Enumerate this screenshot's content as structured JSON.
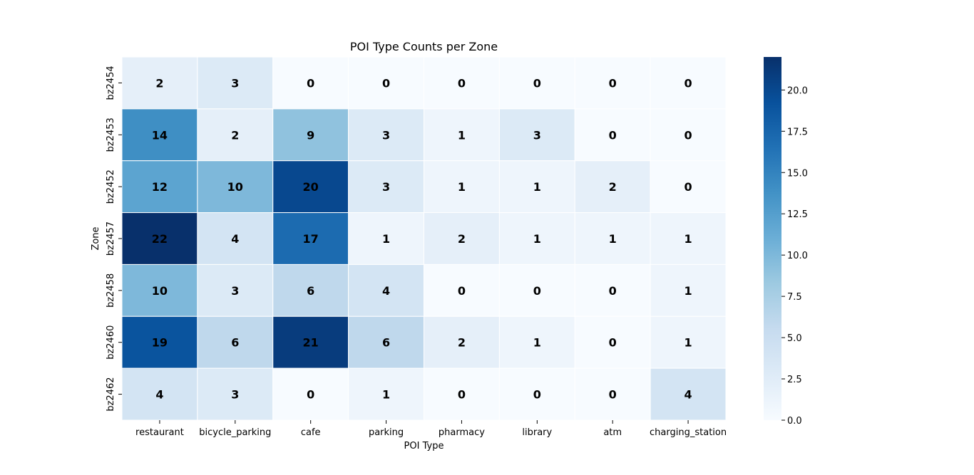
{
  "chart_data": {
    "type": "heatmap",
    "title": "POI Type Counts per Zone",
    "xlabel": "POI Type",
    "ylabel": "Zone",
    "x_categories": [
      "restaurant",
      "bicycle_parking",
      "cafe",
      "parking",
      "pharmacy",
      "library",
      "atm",
      "charging_station"
    ],
    "y_categories": [
      "bz2454",
      "bz2453",
      "bz2452",
      "bz2457",
      "bz2458",
      "bz2460",
      "bz2462"
    ],
    "values": [
      [
        2,
        3,
        0,
        0,
        0,
        0,
        0,
        0
      ],
      [
        14,
        2,
        9,
        3,
        1,
        3,
        0,
        0
      ],
      [
        12,
        10,
        20,
        3,
        1,
        1,
        2,
        0
      ],
      [
        22,
        4,
        17,
        1,
        2,
        1,
        1,
        1
      ],
      [
        10,
        3,
        6,
        4,
        0,
        0,
        0,
        1
      ],
      [
        19,
        6,
        21,
        6,
        2,
        1,
        0,
        1
      ],
      [
        4,
        3,
        0,
        1,
        0,
        0,
        0,
        4
      ]
    ],
    "colormap": "Blues",
    "colorbar": {
      "range": [
        0,
        22
      ],
      "ticks": [
        0.0,
        2.5,
        5.0,
        7.5,
        10.0,
        12.5,
        15.0,
        17.5,
        20.0
      ],
      "tick_labels": [
        "0.0",
        "2.5",
        "5.0",
        "7.5",
        "10.0",
        "12.5",
        "15.0",
        "17.5",
        "20.0"
      ]
    },
    "annotations": "cell values shown",
    "grid": false
  }
}
